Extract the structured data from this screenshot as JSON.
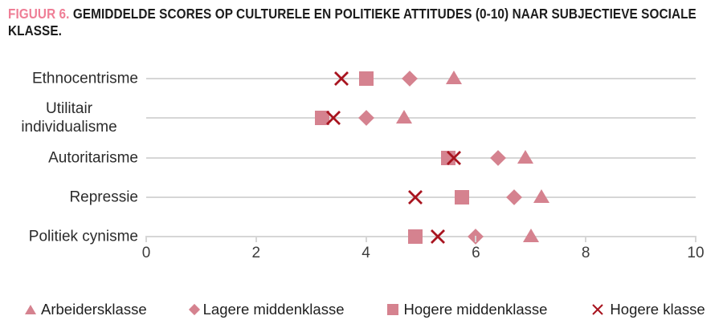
{
  "title": {
    "prefix": "FIGUUR 6.",
    "text": "GEMIDDELDE SCORES OP CULTURELE EN POLITIEKE ATTITUDES (0-10) NAAR SUBJECTIEVE SOCIALE KLASSE."
  },
  "colors": {
    "accent_pink": "#ef7e96",
    "marker_fill": "#d5828f",
    "cross_stroke": "#a8141f",
    "gridline": "#d6d6d6"
  },
  "chart_data": {
    "type": "scatter",
    "orientation": "horizontal-dot-plot",
    "categories": [
      "Ethnocentrisme",
      "Utilitair individualisme",
      "Autoritarisme",
      "Repressie",
      "Politiek cynisme"
    ],
    "series": [
      {
        "name": "Arbeidersklasse",
        "marker": "triangle",
        "values": [
          5.6,
          4.7,
          6.9,
          7.2,
          7.0
        ]
      },
      {
        "name": "Lagere middenklasse",
        "marker": "diamond",
        "values": [
          4.8,
          4.0,
          6.4,
          6.7,
          6.0
        ]
      },
      {
        "name": "Hogere middenklasse",
        "marker": "square",
        "values": [
          4.0,
          3.2,
          5.5,
          5.75,
          4.9
        ]
      },
      {
        "name": "Hogere klasse",
        "marker": "cross",
        "values": [
          3.55,
          3.4,
          5.6,
          4.9,
          5.3
        ]
      }
    ],
    "xlim": [
      0,
      10
    ],
    "x_ticks": [
      0,
      2,
      4,
      6,
      8,
      10
    ],
    "grid": "horizontal-category-lines",
    "legend_position": "bottom"
  }
}
